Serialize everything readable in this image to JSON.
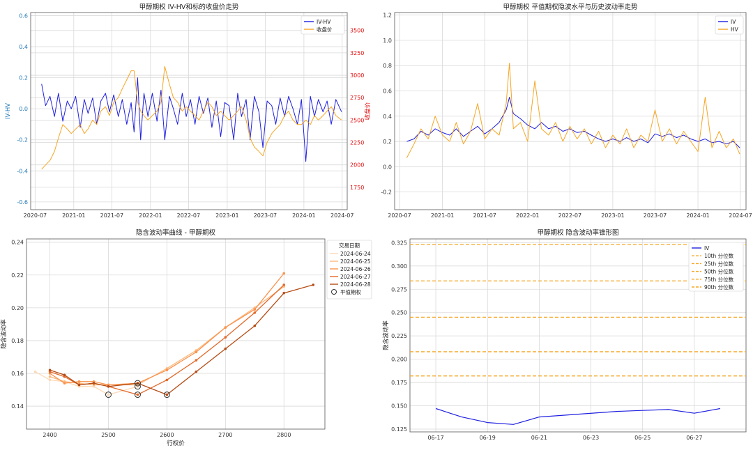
{
  "chart_data": [
    {
      "id": "p1",
      "type": "line",
      "title": "甲醇期权 IV-HV和标的收盘价走势",
      "ylabel": "IV-HV",
      "y2label": "收盘价",
      "xlim": [
        "2020-06-10",
        "2024-07-25"
      ],
      "ylim": [
        -0.65,
        0.62
      ],
      "y2lim": [
        1500,
        3700
      ],
      "xticks": [
        "2020-07",
        "2021-01",
        "2021-07",
        "2022-01",
        "2022-07",
        "2023-01",
        "2023-07",
        "2024-01",
        "2024-07"
      ],
      "yticks": [
        "-0.6",
        "-0.4",
        "-0.2",
        "0.0",
        "0.2",
        "0.4",
        "0.6"
      ],
      "y2ticks": [
        "1750",
        "2000",
        "2250",
        "2500",
        "2750",
        "3000",
        "3250",
        "3500"
      ],
      "legend": [
        "IV-HV",
        "收盘价"
      ],
      "legend_position": "top-right",
      "grid": true,
      "series": [
        {
          "name": "IV-HV",
          "axis": "left",
          "color": "#1f1fe0",
          "x": [
            "2020-08-01",
            "2020-08-20",
            "2020-09-10",
            "2020-10-01",
            "2020-10-20",
            "2020-11-10",
            "2020-12-01",
            "2020-12-20",
            "2021-01-10",
            "2021-02-01",
            "2021-02-20",
            "2021-03-10",
            "2021-04-01",
            "2021-04-20",
            "2021-05-10",
            "2021-06-01",
            "2021-06-20",
            "2021-07-10",
            "2021-08-01",
            "2021-08-20",
            "2021-09-10",
            "2021-10-01",
            "2021-10-15",
            "2021-11-01",
            "2021-11-15",
            "2021-12-01",
            "2021-12-20",
            "2022-01-10",
            "2022-02-01",
            "2022-02-20",
            "2022-03-10",
            "2022-04-01",
            "2022-04-20",
            "2022-05-10",
            "2022-06-01",
            "2022-06-20",
            "2022-07-10",
            "2022-08-01",
            "2022-08-20",
            "2022-09-10",
            "2022-10-01",
            "2022-10-20",
            "2022-11-10",
            "2022-12-01",
            "2022-12-20",
            "2023-01-10",
            "2023-02-01",
            "2023-02-20",
            "2023-03-10",
            "2023-04-01",
            "2023-04-20",
            "2023-05-10",
            "2023-06-01",
            "2023-06-20",
            "2023-07-10",
            "2023-08-01",
            "2023-08-20",
            "2023-09-10",
            "2023-10-01",
            "2023-10-20",
            "2023-11-10",
            "2023-12-01",
            "2023-12-20",
            "2024-01-10",
            "2024-02-01",
            "2024-02-20",
            "2024-03-10",
            "2024-04-01",
            "2024-04-20",
            "2024-05-10",
            "2024-06-01",
            "2024-06-28"
          ],
          "values": [
            0.16,
            0.02,
            0.08,
            -0.05,
            0.1,
            -0.08,
            0.05,
            0.0,
            0.08,
            -0.12,
            0.06,
            -0.03,
            0.07,
            -0.1,
            0.05,
            0.1,
            -0.02,
            0.09,
            -0.05,
            0.06,
            -0.1,
            0.04,
            -0.15,
            0.2,
            -0.2,
            0.1,
            -0.05,
            0.1,
            -0.08,
            0.12,
            -0.2,
            0.08,
            0.0,
            -0.1,
            0.1,
            -0.05,
            0.06,
            -0.1,
            0.08,
            -0.03,
            0.07,
            -0.12,
            0.05,
            -0.18,
            0.04,
            0.02,
            -0.2,
            0.1,
            -0.05,
            0.06,
            -0.2,
            0.08,
            -0.02,
            -0.25,
            0.05,
            0.02,
            -0.1,
            0.07,
            -0.05,
            0.08,
            0.0,
            -0.1,
            0.06,
            -0.34,
            0.08,
            -0.05,
            0.06,
            -0.02,
            0.05,
            -0.1,
            0.06,
            -0.02
          ]
        },
        {
          "name": "收盘价",
          "axis": "right",
          "color": "#f5a623",
          "x": [
            "2020-08-01",
            "2020-08-20",
            "2020-09-10",
            "2020-10-01",
            "2020-10-20",
            "2020-11-10",
            "2020-12-01",
            "2020-12-20",
            "2021-01-10",
            "2021-02-01",
            "2021-02-20",
            "2021-03-10",
            "2021-04-01",
            "2021-04-20",
            "2021-05-10",
            "2021-06-01",
            "2021-06-20",
            "2021-07-10",
            "2021-08-01",
            "2021-08-20",
            "2021-09-10",
            "2021-10-01",
            "2021-10-15",
            "2021-11-01",
            "2021-11-15",
            "2021-12-01",
            "2021-12-20",
            "2022-01-10",
            "2022-02-01",
            "2022-02-20",
            "2022-03-10",
            "2022-04-01",
            "2022-04-20",
            "2022-05-10",
            "2022-06-01",
            "2022-06-20",
            "2022-07-10",
            "2022-08-01",
            "2022-08-20",
            "2022-09-10",
            "2022-10-01",
            "2022-10-20",
            "2022-11-10",
            "2022-12-01",
            "2022-12-20",
            "2023-01-10",
            "2023-02-01",
            "2023-02-20",
            "2023-03-10",
            "2023-04-01",
            "2023-04-20",
            "2023-05-10",
            "2023-06-01",
            "2023-06-20",
            "2023-07-10",
            "2023-08-01",
            "2023-08-20",
            "2023-09-10",
            "2023-10-01",
            "2023-10-20",
            "2023-11-10",
            "2023-12-01",
            "2023-12-20",
            "2024-01-10",
            "2024-02-01",
            "2024-02-20",
            "2024-03-10",
            "2024-04-01",
            "2024-04-20",
            "2024-05-10",
            "2024-06-01",
            "2024-06-28"
          ],
          "values": [
            1950,
            2000,
            2050,
            2150,
            2300,
            2450,
            2400,
            2350,
            2400,
            2450,
            2350,
            2400,
            2500,
            2450,
            2600,
            2650,
            2550,
            2700,
            2750,
            2850,
            2950,
            3050,
            3050,
            2700,
            2600,
            2550,
            2500,
            2550,
            2600,
            2700,
            3100,
            2900,
            2750,
            2700,
            2600,
            2650,
            2600,
            2550,
            2500,
            2600,
            2700,
            2650,
            2550,
            2600,
            2550,
            2500,
            2550,
            2600,
            2650,
            2500,
            2300,
            2200,
            2150,
            2100,
            2250,
            2350,
            2400,
            2450,
            2550,
            2600,
            2500,
            2450,
            2450,
            2500,
            2450,
            2550,
            2500,
            2550,
            2600,
            2650,
            2550,
            2500
          ]
        }
      ]
    },
    {
      "id": "p2",
      "type": "line",
      "title": "甲醇期权 平值期权隐波水平与历史波动率走势",
      "xlim": [
        "2020-06-10",
        "2024-07-25"
      ],
      "ylim": [
        -0.34,
        1.22
      ],
      "xticks": [
        "2020-07",
        "2021-01",
        "2021-07",
        "2022-01",
        "2022-07",
        "2023-01",
        "2023-07",
        "2024-01",
        "2024-07"
      ],
      "yticks": [
        "-0.2",
        "0.0",
        "0.2",
        "0.4",
        "0.6",
        "0.8",
        "1.0",
        "1.2"
      ],
      "legend": [
        "IV",
        "HV"
      ],
      "legend_position": "top-right",
      "grid": true,
      "series": [
        {
          "name": "IV",
          "color": "#1f1fe0",
          "x": [
            "2020-08-01",
            "2020-09-01",
            "2020-10-01",
            "2020-11-01",
            "2020-12-01",
            "2021-01-01",
            "2021-02-01",
            "2021-03-01",
            "2021-04-01",
            "2021-05-01",
            "2021-06-01",
            "2021-07-01",
            "2021-08-01",
            "2021-09-01",
            "2021-10-01",
            "2021-10-15",
            "2021-11-01",
            "2021-12-01",
            "2022-01-01",
            "2022-02-01",
            "2022-03-01",
            "2022-04-01",
            "2022-05-01",
            "2022-06-01",
            "2022-07-01",
            "2022-08-01",
            "2022-09-01",
            "2022-10-01",
            "2022-11-01",
            "2022-12-01",
            "2023-01-01",
            "2023-02-01",
            "2023-03-01",
            "2023-04-01",
            "2023-05-01",
            "2023-06-01",
            "2023-07-01",
            "2023-08-01",
            "2023-09-01",
            "2023-10-01",
            "2023-11-01",
            "2023-12-01",
            "2024-01-01",
            "2024-02-01",
            "2024-03-01",
            "2024-04-01",
            "2024-05-01",
            "2024-06-01",
            "2024-06-28"
          ],
          "values": [
            0.2,
            0.22,
            0.28,
            0.25,
            0.3,
            0.27,
            0.25,
            0.3,
            0.24,
            0.28,
            0.32,
            0.26,
            0.3,
            0.35,
            0.45,
            0.55,
            0.42,
            0.38,
            0.33,
            0.3,
            0.35,
            0.3,
            0.32,
            0.28,
            0.3,
            0.27,
            0.28,
            0.25,
            0.22,
            0.2,
            0.22,
            0.2,
            0.23,
            0.2,
            0.22,
            0.19,
            0.26,
            0.24,
            0.26,
            0.23,
            0.25,
            0.22,
            0.2,
            0.22,
            0.19,
            0.2,
            0.18,
            0.2,
            0.15
          ]
        },
        {
          "name": "HV",
          "color": "#f5a623",
          "x": [
            "2020-08-01",
            "2020-09-01",
            "2020-10-01",
            "2020-11-01",
            "2020-12-01",
            "2021-01-01",
            "2021-02-01",
            "2021-03-01",
            "2021-04-01",
            "2021-05-01",
            "2021-06-01",
            "2021-07-01",
            "2021-08-01",
            "2021-09-01",
            "2021-10-01",
            "2021-10-15",
            "2021-11-01",
            "2021-12-01",
            "2022-01-01",
            "2022-02-01",
            "2022-03-01",
            "2022-04-01",
            "2022-05-01",
            "2022-06-01",
            "2022-07-01",
            "2022-08-01",
            "2022-09-01",
            "2022-10-01",
            "2022-11-01",
            "2022-12-01",
            "2023-01-01",
            "2023-02-01",
            "2023-03-01",
            "2023-04-01",
            "2023-05-01",
            "2023-06-01",
            "2023-07-01",
            "2023-08-01",
            "2023-09-01",
            "2023-10-01",
            "2023-11-01",
            "2023-12-01",
            "2024-01-01",
            "2024-02-01",
            "2024-03-01",
            "2024-04-01",
            "2024-05-01",
            "2024-06-01",
            "2024-06-28"
          ],
          "values": [
            0.07,
            0.18,
            0.3,
            0.22,
            0.4,
            0.25,
            0.2,
            0.35,
            0.18,
            0.28,
            0.5,
            0.22,
            0.3,
            0.25,
            0.5,
            0.82,
            0.3,
            0.35,
            0.2,
            0.68,
            0.3,
            0.25,
            0.35,
            0.2,
            0.32,
            0.22,
            0.3,
            0.18,
            0.28,
            0.15,
            0.25,
            0.18,
            0.3,
            0.15,
            0.25,
            0.2,
            0.45,
            0.2,
            0.3,
            0.18,
            0.28,
            0.2,
            0.12,
            0.55,
            0.15,
            0.28,
            0.15,
            0.22,
            0.1
          ]
        }
      ]
    },
    {
      "id": "p3",
      "type": "line",
      "title": "隐含波动率曲线 - 甲醇期权",
      "xlabel": "行权价",
      "ylabel": "隐含波动率",
      "xlim": [
        2360,
        2870
      ],
      "ylim": [
        0.126,
        0.242
      ],
      "xticks": [
        "2400",
        "2500",
        "2600",
        "2700",
        "2800"
      ],
      "yticks": [
        "0.14",
        "0.16",
        "0.18",
        "0.20",
        "0.22",
        "0.24"
      ],
      "legend_title": "交易日期",
      "legend": [
        "2024-06-24",
        "2024-06-25",
        "2024-06-26",
        "2024-06-27",
        "2024-06-28",
        "平值期权"
      ],
      "legend_position": "top-right",
      "grid": true,
      "series": [
        {
          "name": "2024-06-24",
          "color": "#fdd9b5",
          "x": [
            2375,
            2400,
            2425,
            2450,
            2475,
            2500,
            2550
          ],
          "y": [
            0.161,
            0.156,
            0.155,
            0.152,
            0.152,
            0.147,
            0.152
          ]
        },
        {
          "name": "2024-06-25",
          "color": "#fdb97d",
          "x": [
            2400,
            2425,
            2450,
            2475,
            2500,
            2550,
            2600,
            2650,
            2700,
            2750,
            2800
          ],
          "y": [
            0.158,
            0.155,
            0.154,
            0.153,
            0.153,
            0.153,
            0.163,
            0.174,
            0.188,
            0.2,
            0.213
          ]
        },
        {
          "name": "2024-06-26",
          "color": "#f9934f",
          "x": [
            2400,
            2425,
            2450,
            2475,
            2500,
            2550,
            2600,
            2650,
            2700,
            2750,
            2800
          ],
          "y": [
            0.16,
            0.154,
            0.155,
            0.155,
            0.153,
            0.154,
            0.162,
            0.173,
            0.188,
            0.199,
            0.221
          ]
        },
        {
          "name": "2024-06-27",
          "color": "#e2692a",
          "x": [
            2400,
            2425,
            2450,
            2475,
            2500,
            2550,
            2600,
            2650,
            2700,
            2750,
            2800
          ],
          "y": [
            0.161,
            0.158,
            0.153,
            0.154,
            0.152,
            0.147,
            0.156,
            0.168,
            0.182,
            0.197,
            0.214
          ]
        },
        {
          "name": "2024-06-28",
          "color": "#b54d15",
          "x": [
            2400,
            2425,
            2450,
            2475,
            2500,
            2550,
            2600,
            2650,
            2700,
            2750,
            2800,
            2850
          ],
          "y": [
            0.162,
            0.159,
            0.153,
            0.154,
            0.152,
            0.154,
            0.147,
            0.161,
            0.175,
            0.189,
            0.209,
            0.214
          ]
        }
      ],
      "atm_points": [
        {
          "x": 2500,
          "y": 0.147
        },
        {
          "x": 2550,
          "y": 0.152
        },
        {
          "x": 2550,
          "y": 0.154
        },
        {
          "x": 2550,
          "y": 0.147
        },
        {
          "x": 2600,
          "y": 0.147
        }
      ]
    },
    {
      "id": "p4",
      "type": "line",
      "title": "甲醇期权 隐含波动率锥形图",
      "ylabel": "隐含波动率",
      "xlim": [
        "2024-06-16",
        "2024-06-29"
      ],
      "ylim": [
        0.122,
        0.329
      ],
      "xticks": [
        "06-17",
        "06-19",
        "06-21",
        "06-23",
        "06-25",
        "06-27"
      ],
      "yticks": [
        "0.125",
        "0.150",
        "0.175",
        "0.200",
        "0.225",
        "0.250",
        "0.275",
        "0.300",
        "0.325"
      ],
      "legend": [
        "IV",
        "10th 分位数",
        "25th 分位数",
        "50th 分位数",
        "75th 分位数",
        "90th 分位数"
      ],
      "legend_position": "top-right",
      "grid": true,
      "series": [
        {
          "name": "IV",
          "color": "#1f1fe0",
          "x": [
            "2024-06-17",
            "2024-06-18",
            "2024-06-19",
            "2024-06-20",
            "2024-06-21",
            "2024-06-24",
            "2024-06-25",
            "2024-06-26",
            "2024-06-27",
            "2024-06-28"
          ],
          "y": [
            0.147,
            0.138,
            0.132,
            0.13,
            0.138,
            0.144,
            0.145,
            0.146,
            0.142,
            0.147
          ]
        }
      ],
      "quantiles": [
        {
          "name": "10th 分位数",
          "value": 0.182,
          "color": "#f5a623"
        },
        {
          "name": "25th 分位数",
          "value": 0.208,
          "color": "#f5a623"
        },
        {
          "name": "50th 分位数",
          "value": 0.245,
          "color": "#f5a623"
        },
        {
          "name": "75th 分位数",
          "value": 0.284,
          "color": "#f5a623"
        },
        {
          "name": "90th 分位数",
          "value": 0.323,
          "color": "#f5a623"
        }
      ]
    }
  ]
}
